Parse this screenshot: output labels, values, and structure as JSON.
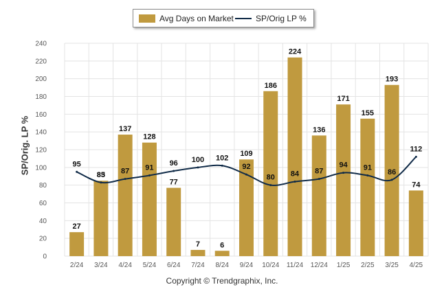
{
  "legend": {
    "bar_label": "Avg Days on Market",
    "line_label": "SP/Orig LP %"
  },
  "copyright": "Copyright © Trendgraphix, Inc.",
  "colors": {
    "bar": "#c09a3f",
    "line": "#0f2a47",
    "grid": "#e3e3e3"
  },
  "chart_data": {
    "type": "bar",
    "title": "",
    "xlabel": "",
    "ylabel": "SP/Orig. LP %",
    "ylim": [
      0,
      240
    ],
    "yticks": [
      0,
      20,
      40,
      60,
      80,
      100,
      120,
      140,
      160,
      180,
      200,
      220,
      240
    ],
    "grid": true,
    "legend_position": "top-center",
    "categories": [
      "2/24",
      "3/24",
      "4/24",
      "5/24",
      "6/24",
      "7/24",
      "8/24",
      "9/24",
      "10/24",
      "11/24",
      "12/24",
      "1/25",
      "2/25",
      "3/25",
      "4/25"
    ],
    "series": [
      {
        "name": "Avg Days on Market",
        "type": "bar",
        "values": [
          27,
          85,
          137,
          128,
          77,
          7,
          6,
          109,
          186,
          224,
          136,
          171,
          155,
          193,
          74
        ]
      },
      {
        "name": "SP/Orig LP %",
        "type": "line",
        "values": [
          95,
          83,
          87,
          91,
          96,
          100,
          102,
          92,
          80,
          84,
          87,
          94,
          91,
          86,
          112
        ]
      }
    ]
  }
}
